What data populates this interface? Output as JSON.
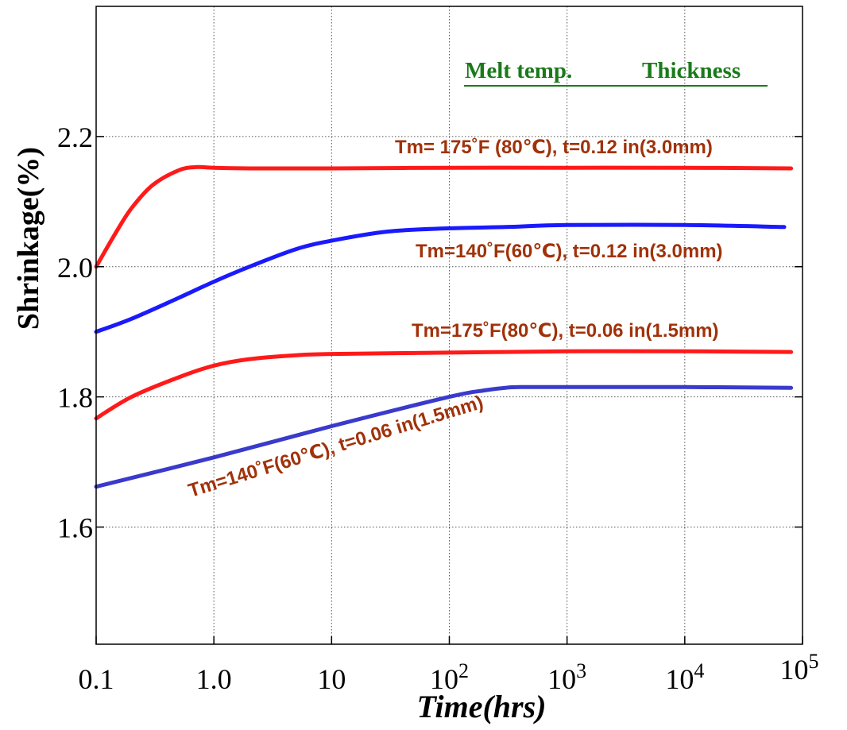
{
  "chart_data": {
    "type": "line",
    "title": "",
    "xlabel": "Time(hrs)",
    "ylabel": "Shrinkage(%)",
    "x_scale": "log",
    "xlim": [
      0.1,
      100000
    ],
    "ylim": [
      1.42,
      2.4
    ],
    "grid": true,
    "x_ticks": [
      {
        "value": 0.1,
        "base": "0.1",
        "exp": ""
      },
      {
        "value": 1,
        "base": "1.0",
        "exp": ""
      },
      {
        "value": 10,
        "base": "10",
        "exp": ""
      },
      {
        "value": 100,
        "base": "10",
        "exp": "2"
      },
      {
        "value": 1000,
        "base": "10",
        "exp": "3"
      },
      {
        "value": 10000,
        "base": "10",
        "exp": "4"
      },
      {
        "value": 100000,
        "base": "10",
        "exp": "5"
      }
    ],
    "y_ticks": [
      {
        "value": 1.6,
        "label": "1.6"
      },
      {
        "value": 1.8,
        "label": "1.8"
      },
      {
        "value": 2.0,
        "label": "2.0"
      },
      {
        "value": 2.2,
        "label": "2.2"
      }
    ],
    "legend": {
      "headers": [
        "Melt temp.",
        "Thickness"
      ],
      "color": "#1a7a1a"
    },
    "series": [
      {
        "name": "Tm= 175˚F (80℃),  t=0.12 in(3.0mm)",
        "color": "#ff1a1a",
        "x": [
          0.1,
          0.15,
          0.2,
          0.3,
          0.5,
          0.7,
          1,
          2,
          10,
          100,
          1000,
          10000,
          80000
        ],
        "y": [
          2.0,
          2.055,
          2.09,
          2.125,
          2.148,
          2.153,
          2.152,
          2.151,
          2.151,
          2.152,
          2.152,
          2.152,
          2.151
        ]
      },
      {
        "name": "Tm=140˚F(60℃), t=0.12 in(3.0mm)",
        "color": "#1a1aff",
        "x": [
          0.1,
          0.2,
          0.5,
          1,
          2,
          5,
          10,
          30,
          100,
          300,
          1000,
          10000,
          70000
        ],
        "y": [
          1.9,
          1.92,
          1.952,
          1.977,
          2.0,
          2.027,
          2.04,
          2.054,
          2.059,
          2.061,
          2.064,
          2.064,
          2.061
        ]
      },
      {
        "name": "Tm=175˚F(80℃), t=0.06 in(1.5mm)",
        "color": "#ff1a1a",
        "x": [
          0.1,
          0.2,
          0.5,
          1,
          2,
          5,
          10,
          100,
          1000,
          10000,
          80000
        ],
        "y": [
          1.767,
          1.8,
          1.83,
          1.848,
          1.858,
          1.864,
          1.866,
          1.868,
          1.87,
          1.87,
          1.869
        ]
      },
      {
        "name": "Tm=140˚F(60℃), t=0.06 in(1.5mm)",
        "color": "#3a3acc",
        "x": [
          0.1,
          1,
          10,
          100,
          200,
          300,
          400,
          1000,
          10000,
          80000
        ],
        "y": [
          1.662,
          1.707,
          1.755,
          1.8,
          1.81,
          1.814,
          1.815,
          1.815,
          1.815,
          1.814
        ]
      }
    ],
    "annotations": {
      "color": "#a0320a",
      "labels": [
        "Tm= 175˚F (80℃),  t=0.12 in(3.0mm)",
        "Tm=140˚F(60℃), t=0.12 in(3.0mm)",
        "Tm=175˚F(80℃), t=0.06 in(1.5mm)",
        "Tm=140˚F(60℃), t=0.06 in(1.5mm)"
      ]
    }
  }
}
